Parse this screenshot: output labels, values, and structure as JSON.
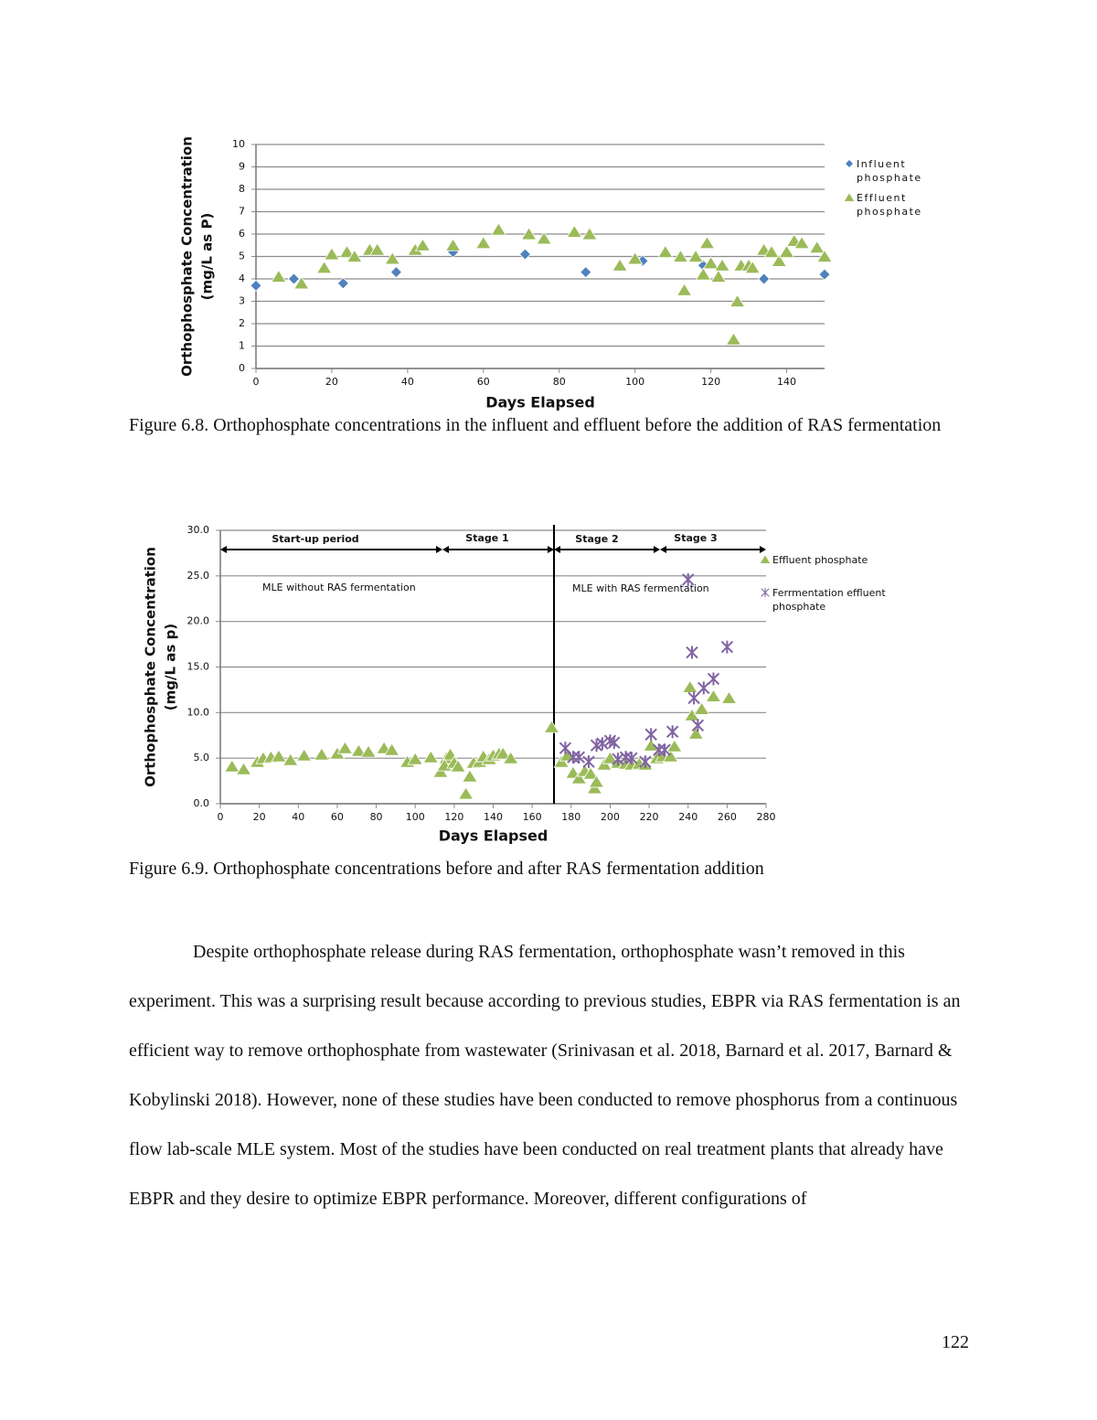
{
  "chart_data": [
    {
      "type": "scatter",
      "y_label": [
        "Orthophosphate Concentration",
        "(mg/L as P)"
      ],
      "x_label": "Days Elapsed",
      "xlim": [
        0,
        150
      ],
      "xticks": [
        0,
        20,
        40,
        60,
        80,
        100,
        120,
        140
      ],
      "ylim": [
        0,
        10
      ],
      "yticks": [
        0,
        1,
        2,
        3,
        4,
        5,
        6,
        7,
        8,
        9,
        10
      ],
      "grid": true,
      "legend": "right",
      "series": [
        {
          "name": "Influent phosphate",
          "color": "#4f81bd",
          "marker": "diamond",
          "x": [
            0,
            10,
            23,
            37,
            52,
            71,
            87,
            102,
            118,
            134,
            150
          ],
          "values": [
            3.7,
            4.0,
            3.8,
            4.3,
            5.2,
            5.1,
            4.3,
            4.8,
            4.6,
            4.0,
            4.2
          ]
        },
        {
          "name": "Effluent phosphate",
          "color": "#9bbb59",
          "marker": "triangle",
          "x": [
            6,
            12,
            18,
            20,
            24,
            26,
            30,
            32,
            36,
            42,
            44,
            52,
            60,
            64,
            72,
            76,
            84,
            88,
            96,
            100,
            108,
            112,
            113,
            116,
            119,
            118,
            120,
            122,
            123,
            127,
            126,
            128,
            130,
            131,
            134,
            136,
            138,
            140,
            142,
            144,
            148,
            150
          ],
          "values": [
            4.1,
            3.8,
            4.5,
            5.1,
            5.2,
            5.0,
            5.3,
            5.3,
            4.9,
            5.3,
            5.5,
            5.5,
            5.6,
            6.2,
            6.0,
            5.8,
            6.1,
            6.0,
            4.6,
            4.9,
            5.2,
            5.0,
            3.5,
            5.0,
            5.6,
            4.2,
            4.7,
            4.1,
            4.6,
            3.0,
            1.3,
            4.6,
            4.6,
            4.5,
            5.3,
            5.2,
            4.8,
            5.2,
            5.7,
            5.6,
            5.4,
            5.0
          ]
        }
      ]
    },
    {
      "type": "scatter",
      "y_label": [
        "Orthophosphate Concentration",
        "(mg/L as p)"
      ],
      "x_label": "Days Elapsed",
      "xlim": [
        0,
        280
      ],
      "xticks": [
        0,
        20,
        40,
        60,
        80,
        100,
        120,
        140,
        160,
        180,
        200,
        220,
        240,
        260,
        280
      ],
      "ylim": [
        0,
        30
      ],
      "yticks": [
        {
          "value": 0,
          "label": "0.0"
        },
        {
          "value": 5,
          "label": "5.0"
        },
        {
          "value": 10,
          "label": "10.0"
        },
        {
          "value": 15,
          "label": "15.0"
        },
        {
          "value": 20,
          "label": "20.0"
        },
        {
          "value": 25,
          "label": "25.0"
        },
        {
          "value": 30,
          "label": "30.0"
        }
      ],
      "grid": true,
      "legend": "right",
      "annotations": [
        "Start-up period",
        "Stage 1",
        "Stage 2",
        "Stage 3",
        "MLE without RAS fermentation",
        "MLE with RAS fermentation"
      ],
      "series": [
        {
          "name": "Effluent phosphate",
          "color": "#9bbb59",
          "marker": "triangle",
          "x": [
            6,
            12,
            19,
            22,
            26,
            30,
            36,
            43,
            52,
            60,
            64,
            71,
            76,
            84,
            88,
            96,
            100,
            108,
            113,
            116,
            118,
            115,
            120,
            122,
            126,
            128,
            130,
            133,
            135,
            138,
            140,
            143,
            145,
            149,
            170,
            175,
            178,
            181,
            184,
            187,
            190,
            192,
            193,
            197,
            200,
            204,
            208,
            211,
            215,
            218,
            221,
            224,
            227,
            231,
            233,
            241,
            242,
            244,
            247,
            253,
            261
          ],
          "values": [
            4.1,
            3.8,
            4.6,
            5.0,
            5.1,
            5.2,
            4.8,
            5.3,
            5.4,
            5.5,
            6.1,
            5.8,
            5.7,
            6.1,
            5.9,
            4.6,
            4.9,
            5.1,
            3.5,
            5.0,
            5.4,
            4.2,
            4.5,
            4.1,
            1.1,
            3.0,
            4.5,
            4.6,
            5.2,
            4.9,
            5.3,
            5.5,
            5.5,
            5.0,
            8.4,
            4.6,
            5.3,
            3.4,
            2.8,
            3.6,
            3.3,
            1.7,
            2.4,
            4.3,
            5.0,
            4.5,
            4.4,
            4.3,
            4.4,
            4.3,
            6.4,
            5.0,
            5.2,
            5.2,
            6.3,
            12.8,
            9.7,
            7.7,
            10.4,
            11.8,
            11.6
          ]
        },
        {
          "name": "Ferrmentation effluent phosphate",
          "color": "#8064a2",
          "marker": "star",
          "x": [
            177,
            181,
            184,
            189,
            193,
            196,
            200,
            202,
            204,
            208,
            211,
            218,
            221,
            225,
            228,
            232,
            240,
            242,
            243,
            245,
            248,
            253,
            260
          ],
          "values": [
            6.1,
            5.1,
            5.1,
            4.6,
            6.4,
            6.6,
            6.9,
            6.7,
            4.9,
            5.1,
            5.0,
            4.6,
            7.6,
            5.9,
            5.9,
            7.9,
            24.6,
            16.6,
            11.6,
            8.6,
            12.7,
            13.7,
            17.2
          ]
        }
      ]
    }
  ],
  "captions": [
    "Figure 6.8. Orthophosphate concentrations in the influent and effluent before the addition of RAS fermentation",
    "Figure 6.9.  Orthophosphate concentrations before and after RAS fermentation addition"
  ],
  "paragraph": "Despite orthophosphate release during RAS fermentation, orthophosphate wasn’t removed in this experiment. This was a surprising result because according to previous studies, EBPR via RAS fermentation is an efficient way to remove orthophosphate from wastewater (Srinivasan et al. 2018, Barnard et al. 2017, Barnard & Kobylinski 2018). However, none of these studies have been conducted to remove phosphorus from a continuous flow lab-scale MLE system. Most of the studies have been conducted on real treatment plants that already have EBPR and they desire to optimize EBPR performance. Moreover, different configurations of",
  "page_number": "122"
}
